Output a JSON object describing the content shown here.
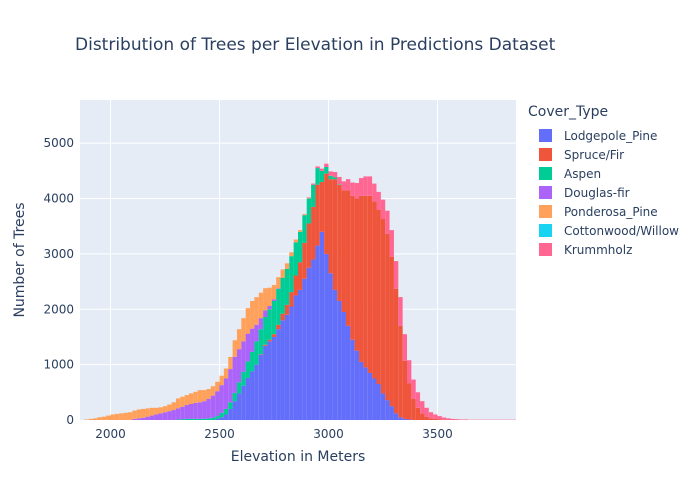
{
  "chart_data": {
    "type": "bar",
    "stacked": true,
    "title": "Distribution of Trees per Elevation in Predictions Dataset",
    "xlabel": "Elevation in Meters",
    "ylabel": "Number of Trees",
    "xlim": [
      1860,
      3860
    ],
    "ylim": [
      0,
      5780
    ],
    "x_ticks": [
      2000,
      2500,
      3000,
      3500
    ],
    "y_ticks": [
      0,
      1000,
      2000,
      3000,
      4000,
      5000
    ],
    "legend_title": "Cover_Type",
    "legend_position": "right",
    "grid": true,
    "bin_start": 1860,
    "bin_width": 20,
    "x": [
      1870,
      1890,
      1910,
      1930,
      1950,
      1970,
      1990,
      2010,
      2030,
      2050,
      2070,
      2090,
      2110,
      2130,
      2150,
      2170,
      2190,
      2210,
      2230,
      2250,
      2270,
      2290,
      2310,
      2330,
      2350,
      2370,
      2390,
      2410,
      2430,
      2450,
      2470,
      2490,
      2510,
      2530,
      2550,
      2570,
      2590,
      2610,
      2630,
      2650,
      2670,
      2690,
      2710,
      2730,
      2750,
      2770,
      2790,
      2810,
      2830,
      2850,
      2870,
      2890,
      2910,
      2930,
      2950,
      2970,
      2990,
      3010,
      3030,
      3050,
      3070,
      3090,
      3110,
      3130,
      3150,
      3170,
      3190,
      3210,
      3230,
      3250,
      3270,
      3290,
      3310,
      3330,
      3350,
      3370,
      3390,
      3410,
      3430,
      3450,
      3470,
      3490,
      3510,
      3530,
      3550,
      3570,
      3590,
      3610,
      3630,
      3650,
      3670,
      3690,
      3710,
      3730,
      3750,
      3770,
      3790,
      3810,
      3830,
      3850
    ],
    "series": [
      {
        "name": "Lodgepole_Pine",
        "color": "#636efa",
        "values": [
          0,
          0,
          0,
          0,
          0,
          0,
          0,
          0,
          0,
          0,
          0,
          0,
          0,
          0,
          0,
          0,
          0,
          0,
          0,
          0,
          0,
          0,
          0,
          0,
          0,
          0,
          0,
          0,
          0,
          0,
          0,
          20,
          50,
          100,
          200,
          340,
          480,
          620,
          760,
          880,
          1000,
          1180,
          1340,
          1420,
          1500,
          1640,
          1800,
          1900,
          2050,
          2250,
          2350,
          2550,
          2750,
          2900,
          3150,
          3400,
          3000,
          2650,
          2350,
          2150,
          1950,
          1700,
          1450,
          1250,
          1050,
          950,
          850,
          750,
          650,
          480,
          360,
          250,
          120,
          50,
          20,
          10,
          0,
          0,
          0,
          0,
          0,
          0,
          0,
          0,
          0,
          0,
          0,
          0,
          0,
          0,
          0,
          0,
          0,
          0,
          0,
          0,
          0,
          0,
          0,
          0
        ]
      },
      {
        "name": "Spruce/Fir",
        "color": "#ef553b",
        "values": [
          0,
          0,
          0,
          0,
          0,
          0,
          0,
          0,
          0,
          0,
          0,
          0,
          0,
          0,
          0,
          0,
          0,
          0,
          0,
          0,
          0,
          0,
          0,
          0,
          0,
          0,
          0,
          0,
          0,
          0,
          0,
          0,
          0,
          0,
          0,
          0,
          0,
          0,
          0,
          0,
          0,
          10,
          20,
          30,
          50,
          80,
          120,
          180,
          260,
          360,
          500,
          650,
          800,
          950,
          1100,
          900,
          1450,
          1700,
          2000,
          2100,
          2200,
          2450,
          2600,
          2750,
          3000,
          3100,
          3200,
          3200,
          3150,
          3150,
          3000,
          2700,
          2250,
          1650,
          1050,
          650,
          380,
          220,
          120,
          60,
          30,
          20,
          10,
          5,
          0,
          0,
          0,
          0,
          0,
          0,
          0,
          0,
          0,
          0,
          0,
          0,
          0,
          0,
          0,
          0
        ]
      },
      {
        "name": "Aspen",
        "color": "#00cc96",
        "values": [
          0,
          0,
          0,
          0,
          0,
          0,
          0,
          0,
          0,
          0,
          0,
          0,
          0,
          0,
          0,
          0,
          0,
          0,
          0,
          0,
          0,
          0,
          10,
          10,
          20,
          20,
          20,
          20,
          20,
          30,
          40,
          50,
          80,
          100,
          120,
          150,
          200,
          250,
          300,
          350,
          420,
          450,
          500,
          550,
          600,
          650,
          650,
          650,
          650,
          600,
          550,
          500,
          450,
          400,
          300,
          200,
          120,
          60,
          30,
          10,
          0,
          0,
          0,
          0,
          0,
          0,
          0,
          0,
          0,
          0,
          0,
          0,
          0,
          0,
          0,
          0,
          0,
          0,
          0,
          0,
          0,
          0,
          0,
          0,
          0,
          0,
          0,
          0,
          0,
          0,
          0,
          0,
          0,
          0,
          0,
          0,
          0,
          0,
          0,
          0
        ]
      },
      {
        "name": "Douglas-fir",
        "color": "#ab63fa",
        "values": [
          0,
          0,
          0,
          0,
          0,
          0,
          0,
          0,
          0,
          0,
          0,
          0,
          20,
          30,
          40,
          60,
          80,
          100,
          120,
          140,
          160,
          180,
          200,
          230,
          250,
          270,
          290,
          300,
          320,
          350,
          400,
          450,
          500,
          550,
          600,
          650,
          600,
          550,
          500,
          420,
          300,
          200,
          120,
          60,
          30,
          10,
          0,
          0,
          0,
          0,
          0,
          0,
          0,
          0,
          0,
          0,
          0,
          0,
          0,
          0,
          0,
          0,
          0,
          0,
          0,
          0,
          0,
          0,
          0,
          0,
          0,
          0,
          0,
          0,
          0,
          0,
          0,
          0,
          0,
          0,
          0,
          0,
          0,
          0,
          0,
          0,
          0,
          0,
          0,
          0,
          0,
          0,
          0,
          0,
          0,
          0,
          0,
          0,
          0,
          0
        ]
      },
      {
        "name": "Ponderosa_Pine",
        "color": "#ffa15a",
        "values": [
          0,
          10,
          20,
          30,
          50,
          60,
          80,
          100,
          110,
          120,
          130,
          140,
          150,
          160,
          160,
          150,
          140,
          120,
          110,
          110,
          120,
          140,
          180,
          180,
          180,
          190,
          200,
          220,
          200,
          180,
          170,
          170,
          170,
          180,
          220,
          300,
          360,
          420,
          460,
          500,
          500,
          460,
          400,
          330,
          260,
          200,
          150,
          100,
          70,
          50,
          30,
          20,
          10,
          0,
          0,
          0,
          0,
          0,
          0,
          0,
          0,
          0,
          0,
          0,
          0,
          0,
          0,
          0,
          0,
          0,
          0,
          0,
          0,
          0,
          0,
          0,
          0,
          0,
          0,
          0,
          0,
          0,
          0,
          0,
          0,
          0,
          0,
          0,
          0,
          0,
          0,
          0,
          0,
          0,
          0,
          0,
          0,
          0,
          0,
          0
        ]
      },
      {
        "name": "Cottonwood/Willow",
        "color": "#19d3f3",
        "values": [
          0,
          0,
          0,
          0,
          0,
          0,
          0,
          0,
          0,
          0,
          0,
          0,
          0,
          0,
          0,
          0,
          0,
          0,
          0,
          0,
          0,
          0,
          0,
          0,
          0,
          0,
          0,
          0,
          0,
          0,
          0,
          0,
          0,
          0,
          0,
          0,
          0,
          0,
          0,
          0,
          0,
          0,
          0,
          0,
          0,
          0,
          0,
          0,
          0,
          0,
          0,
          0,
          0,
          0,
          0,
          0,
          0,
          0,
          0,
          0,
          0,
          0,
          0,
          0,
          0,
          0,
          0,
          0,
          0,
          0,
          0,
          0,
          0,
          0,
          0,
          0,
          0,
          0,
          0,
          0,
          0,
          0,
          0,
          0,
          0,
          0,
          0,
          0,
          0,
          0,
          0,
          0,
          0,
          0,
          0,
          0,
          0,
          0,
          0,
          0
        ]
      },
      {
        "name": "Krummholz",
        "color": "#ff6692",
        "values": [
          0,
          0,
          0,
          0,
          0,
          0,
          0,
          0,
          0,
          0,
          0,
          0,
          0,
          0,
          0,
          0,
          0,
          0,
          0,
          0,
          0,
          0,
          0,
          0,
          0,
          0,
          0,
          0,
          0,
          0,
          0,
          0,
          0,
          0,
          0,
          0,
          0,
          0,
          0,
          0,
          0,
          0,
          0,
          0,
          0,
          0,
          0,
          0,
          0,
          0,
          0,
          0,
          10,
          20,
          30,
          40,
          60,
          80,
          100,
          130,
          160,
          200,
          240,
          280,
          320,
          350,
          350,
          320,
          320,
          350,
          420,
          480,
          500,
          520,
          480,
          420,
          350,
          280,
          220,
          160,
          110,
          80,
          60,
          40,
          30,
          20,
          15,
          10,
          10,
          5,
          5,
          5,
          5,
          5,
          5,
          5,
          5,
          5,
          5,
          5
        ]
      }
    ]
  }
}
